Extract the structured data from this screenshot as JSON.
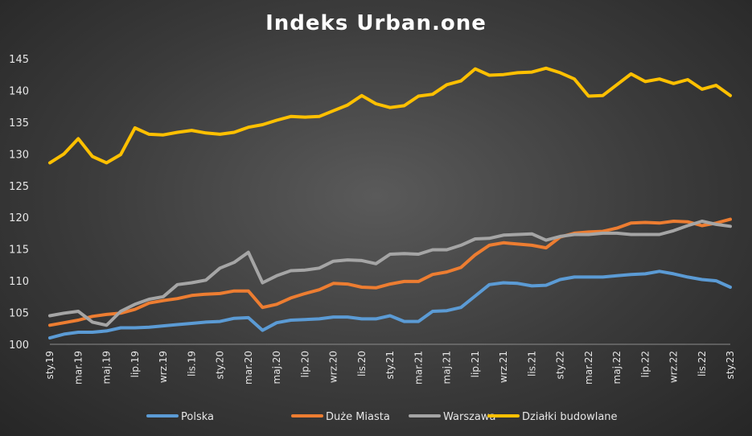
{
  "chart_data": {
    "type": "line",
    "title": "Indeks Urban.one",
    "xlabel": "",
    "ylabel": "",
    "ylim": [
      100,
      145
    ],
    "yticks": [
      100,
      105,
      110,
      115,
      120,
      125,
      130,
      135,
      140,
      145
    ],
    "grid": false,
    "legend_position": "bottom",
    "x": [
      "sty.19",
      "lut.19",
      "mar.19",
      "kwi.19",
      "maj.19",
      "cze.19",
      "lip.19",
      "sie.19",
      "wrz.19",
      "paź.19",
      "lis.19",
      "gru.19",
      "sty.20",
      "lut.20",
      "mar.20",
      "kwi.20",
      "maj.20",
      "cze.20",
      "lip.20",
      "sie.20",
      "wrz.20",
      "paź.20",
      "lis.20",
      "gru.20",
      "sty.21",
      "lut.21",
      "mar.21",
      "kwi.21",
      "maj.21",
      "cze.21",
      "lip.21",
      "sie.21",
      "wrz.21",
      "paź.21",
      "lis.21",
      "gru.21",
      "sty.22",
      "lut.22",
      "mar.22",
      "kwi.22",
      "maj.22",
      "cze.22",
      "lip.22",
      "sie.22",
      "wrz.22",
      "paź.22",
      "lis.22",
      "gru.22",
      "sty.23"
    ],
    "xtick_labels_shown": [
      "sty.19",
      "mar.19",
      "maj.19",
      "lip.19",
      "wrz.19",
      "lis.19",
      "sty.20",
      "mar.20",
      "maj.20",
      "lip.20",
      "wrz.20",
      "lis.20",
      "sty.21",
      "mar.21",
      "maj.21",
      "lip.21",
      "wrz.21",
      "lis.21",
      "sty.22",
      "mar.22",
      "maj.22",
      "lip.22",
      "wrz.22",
      "lis.22",
      "sty.23"
    ],
    "series": [
      {
        "name": "Polska",
        "color": "#5b9bd5",
        "values": [
          101.0,
          101.6,
          101.9,
          101.9,
          102.1,
          102.6,
          102.6,
          102.7,
          102.9,
          103.1,
          103.3,
          103.5,
          103.6,
          104.1,
          104.2,
          102.2,
          103.4,
          103.8,
          103.9,
          104.0,
          104.3,
          104.3,
          104.0,
          104.0,
          104.5,
          103.6,
          103.6,
          105.2,
          105.3,
          105.8,
          107.6,
          109.4,
          109.7,
          109.6,
          109.2,
          109.3,
          110.2,
          110.6,
          110.6,
          110.6,
          110.8,
          111.0,
          111.1,
          111.5,
          111.1,
          110.6,
          110.2,
          110.0,
          109.0
        ]
      },
      {
        "name": "Duże Miasta",
        "color": "#ed7d31",
        "values": [
          103.0,
          103.4,
          103.8,
          104.4,
          104.7,
          104.9,
          105.5,
          106.5,
          106.9,
          107.2,
          107.7,
          107.9,
          108.0,
          108.4,
          108.4,
          105.8,
          106.3,
          107.3,
          108.0,
          108.6,
          109.6,
          109.5,
          109.0,
          108.9,
          109.5,
          109.9,
          109.9,
          111.0,
          111.4,
          112.1,
          114.1,
          115.6,
          116.0,
          115.8,
          115.6,
          115.2,
          116.9,
          117.5,
          117.7,
          117.8,
          118.3,
          119.1,
          119.2,
          119.1,
          119.4,
          119.3,
          118.7,
          119.1,
          119.7
        ]
      },
      {
        "name": "Warszawa",
        "color": "#a5a5a5",
        "values": [
          104.5,
          104.9,
          105.2,
          103.5,
          103.0,
          105.2,
          106.3,
          107.1,
          107.5,
          109.4,
          109.7,
          110.1,
          112.0,
          112.9,
          114.5,
          109.7,
          110.8,
          111.6,
          111.7,
          112.0,
          113.1,
          113.3,
          113.2,
          112.7,
          114.2,
          114.3,
          114.2,
          114.9,
          114.9,
          115.6,
          116.6,
          116.7,
          117.2,
          117.3,
          117.4,
          116.4,
          117.0,
          117.3,
          117.3,
          117.5,
          117.5,
          117.3,
          117.3,
          117.3,
          117.9,
          118.7,
          119.4,
          118.9,
          118.6
        ]
      },
      {
        "name": "Działki budowlane",
        "color": "#ffc000",
        "values": [
          128.6,
          130.0,
          132.4,
          129.6,
          128.6,
          129.9,
          134.1,
          133.1,
          133.0,
          133.4,
          133.7,
          133.3,
          133.1,
          133.4,
          134.2,
          134.6,
          135.3,
          135.9,
          135.8,
          135.9,
          136.8,
          137.7,
          139.2,
          137.9,
          137.3,
          137.6,
          139.1,
          139.4,
          140.9,
          141.5,
          143.4,
          142.4,
          142.5,
          142.8,
          142.9,
          143.5,
          142.8,
          141.8,
          139.1,
          139.2,
          140.9,
          142.6,
          141.4,
          141.8,
          141.1,
          141.7,
          140.2,
          140.8,
          139.2
        ]
      }
    ]
  }
}
